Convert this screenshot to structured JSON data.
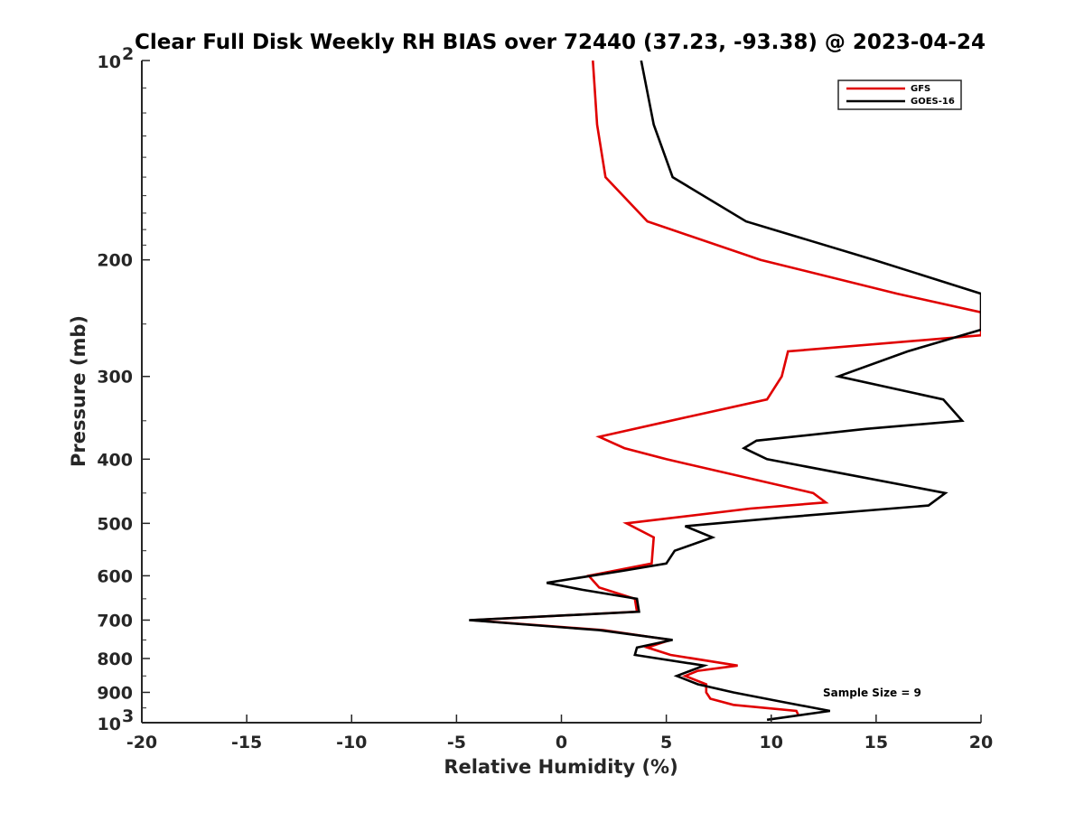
{
  "chart_data": {
    "type": "line",
    "title": "Clear Full Disk Weekly RH BIAS over 72440 (37.23, -93.38) @ 2023-04-24",
    "xlabel": "Relative Humidity (%)",
    "ylabel": "Pressure (mb)",
    "xlim": [
      -20,
      20
    ],
    "ylim": [
      100,
      1000
    ],
    "y_scale": "log",
    "y_reversed": true,
    "x_ticks": [
      "-20",
      "-15",
      "-10",
      "-5",
      "0",
      "5",
      "10",
      "15",
      "20"
    ],
    "y_ticks": [
      {
        "value": 100,
        "base": "10",
        "exp": "2"
      },
      {
        "value": 200,
        "label": "200"
      },
      {
        "value": 300,
        "label": "300"
      },
      {
        "value": 400,
        "label": "400"
      },
      {
        "value": 500,
        "label": "500"
      },
      {
        "value": 600,
        "label": "600"
      },
      {
        "value": 700,
        "label": "700"
      },
      {
        "value": 800,
        "label": "800"
      },
      {
        "value": 900,
        "label": "900"
      },
      {
        "value": 1000,
        "base": "10",
        "exp": "3"
      }
    ],
    "legend_position": "top-right",
    "annotation": "Sample Size = 9",
    "series": [
      {
        "name": "GFS",
        "color": "#e00000",
        "points": [
          [
            1.5,
            100
          ],
          [
            1.7,
            125
          ],
          [
            2.1,
            150
          ],
          [
            4.1,
            175
          ],
          [
            9.5,
            200
          ],
          [
            16,
            225
          ],
          [
            20,
            240
          ],
          [
            20,
            260
          ],
          [
            10.8,
            275
          ],
          [
            10.5,
            300
          ],
          [
            9.8,
            325
          ],
          [
            5.2,
            350
          ],
          [
            1.8,
            370
          ],
          [
            3,
            385
          ],
          [
            5,
            400
          ],
          [
            12,
            450
          ],
          [
            12.6,
            465
          ],
          [
            9,
            475
          ],
          [
            3.1,
            500
          ],
          [
            4.4,
            525
          ],
          [
            4.3,
            575
          ],
          [
            1.3,
            600
          ],
          [
            1.8,
            625
          ],
          [
            3.5,
            650
          ],
          [
            3.6,
            680
          ],
          [
            -4.3,
            700
          ],
          [
            2,
            725
          ],
          [
            5.2,
            750
          ],
          [
            4.1,
            770
          ],
          [
            5.2,
            790
          ],
          [
            8.4,
            820
          ],
          [
            6.5,
            835
          ],
          [
            5.9,
            850
          ],
          [
            6.9,
            875
          ],
          [
            6.9,
            900
          ],
          [
            7.1,
            920
          ],
          [
            8.2,
            940
          ],
          [
            11.2,
            960
          ],
          [
            11.3,
            975
          ]
        ]
      },
      {
        "name": "GOES-16",
        "color": "#000000",
        "points": [
          [
            3.8,
            100
          ],
          [
            4.4,
            125
          ],
          [
            5.3,
            150
          ],
          [
            8.8,
            175
          ],
          [
            14.9,
            200
          ],
          [
            20,
            225
          ],
          [
            20,
            255
          ],
          [
            16.5,
            275
          ],
          [
            13.2,
            300
          ],
          [
            18.2,
            325
          ],
          [
            19.1,
            350
          ],
          [
            14.5,
            360
          ],
          [
            9.3,
            375
          ],
          [
            8.7,
            385
          ],
          [
            9.8,
            400
          ],
          [
            18.3,
            450
          ],
          [
            17.5,
            470
          ],
          [
            10.5,
            490
          ],
          [
            5.9,
            505
          ],
          [
            7.2,
            525
          ],
          [
            5.4,
            550
          ],
          [
            5,
            575
          ],
          [
            2.9,
            590
          ],
          [
            -0.7,
            615
          ],
          [
            1,
            630
          ],
          [
            3.6,
            650
          ],
          [
            3.7,
            680
          ],
          [
            -4.4,
            700
          ],
          [
            1.8,
            725
          ],
          [
            5.3,
            750
          ],
          [
            3.6,
            770
          ],
          [
            3.5,
            790
          ],
          [
            6.8,
            820
          ],
          [
            5.5,
            850
          ],
          [
            6.5,
            875
          ],
          [
            8.2,
            900
          ],
          [
            10.5,
            930
          ],
          [
            12.8,
            960
          ],
          [
            9.8,
            990
          ]
        ]
      }
    ]
  }
}
